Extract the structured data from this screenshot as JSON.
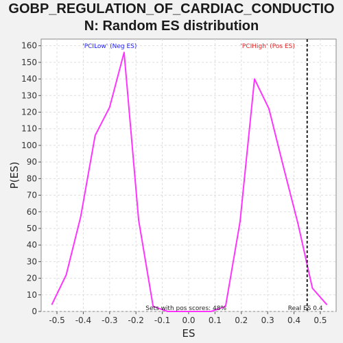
{
  "chart_data": {
    "type": "line",
    "title_line1": "GOBP_REGULATION_OF_CARDIAC_CONDUCTIO",
    "title_line2": "N: Random ES distribution",
    "xlabel": "ES",
    "ylabel": "P(ES)",
    "xlim": [
      -0.56,
      0.56
    ],
    "ylim": [
      0,
      164
    ],
    "xticks": [
      -0.5,
      -0.4,
      -0.3,
      -0.2,
      -0.1,
      0.0,
      0.1,
      0.2,
      0.3,
      0.4,
      0.5
    ],
    "xtick_labels": [
      "-0.5",
      "-0.4",
      "-0.3",
      "-0.2",
      "-0.1",
      "0.0",
      "0.1",
      "0.2",
      "0.3",
      "0.4",
      "0.5"
    ],
    "yticks": [
      0,
      10,
      20,
      30,
      40,
      50,
      60,
      70,
      80,
      90,
      100,
      110,
      120,
      130,
      140,
      150,
      160
    ],
    "grid": true,
    "line_color": "#ff33ff",
    "series": [
      {
        "values_x": [
          -0.52,
          -0.465,
          -0.41,
          -0.355,
          -0.3,
          -0.245,
          -0.19,
          -0.135,
          -0.08,
          -0.025,
          0.03,
          0.085,
          0.14,
          0.195,
          0.25,
          0.305,
          0.36,
          0.415,
          0.47,
          0.525
        ],
        "values_y": [
          4,
          22,
          57,
          106,
          123,
          156,
          55,
          3,
          0,
          0,
          0,
          0,
          3,
          54,
          140,
          122,
          87,
          53,
          14,
          4
        ]
      }
    ],
    "real_es_x": 0.45,
    "annotations": {
      "neg_label": "'PCILow' (Neg ES)",
      "neg_color": "#1a1aff",
      "pos_label": "'PCIHigh' (Pos ES)",
      "pos_color": "#e02020",
      "sets_label": "Sets with pos scores: 48%",
      "real_label": "Real ES 0.4"
    }
  }
}
